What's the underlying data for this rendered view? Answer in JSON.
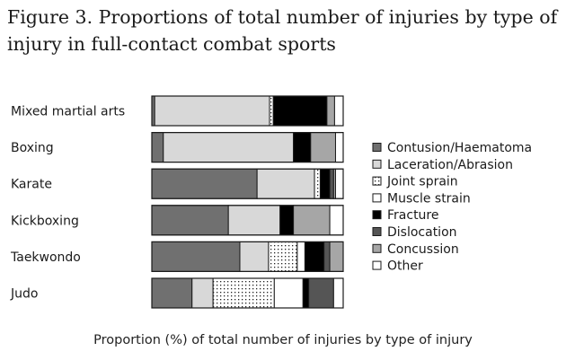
{
  "chart_data": {
    "type": "bar",
    "orientation": "horizontal",
    "stacked": true,
    "normalized": true,
    "title": "Figure 3. Proportions of total number of injuries by type of injury in full-contact combat sports",
    "xlabel": "Proportion (%) of total number of injuries by type of injury",
    "ylabel": "",
    "xlim": [
      0,
      100
    ],
    "legend_position": "right",
    "grid": false,
    "categories": [
      "Mixed martial arts",
      "Boxing",
      "Karate",
      "Kickboxing",
      "Taekwondo",
      "Judo"
    ],
    "series": [
      {
        "name": "Contusion/Haematoma",
        "color": "#707070",
        "pattern": "solid",
        "values": [
          1.5,
          6,
          55,
          40,
          46,
          21
        ]
      },
      {
        "name": "Laceration/Abrasion",
        "color": "#d8d8d8",
        "pattern": "solid",
        "values": [
          60,
          68,
          30,
          27,
          15,
          11
        ]
      },
      {
        "name": "Joint sprain",
        "color": "#ffffff",
        "pattern": "dots",
        "values": [
          2,
          0,
          3,
          0,
          15,
          32
        ]
      },
      {
        "name": "Muscle strain",
        "color": "#ffffff",
        "pattern": "solid",
        "values": [
          0,
          0,
          0,
          0,
          4,
          15
        ]
      },
      {
        "name": "Fracture",
        "color": "#000000",
        "pattern": "solid",
        "values": [
          28,
          9,
          5,
          7,
          10,
          3
        ]
      },
      {
        "name": "Dislocation",
        "color": "#555555",
        "pattern": "solid",
        "values": [
          0,
          0,
          2,
          0,
          3,
          13
        ]
      },
      {
        "name": "Concussion",
        "color": "#a6a6a6",
        "pattern": "solid",
        "values": [
          4,
          13,
          1,
          19,
          7,
          0
        ]
      },
      {
        "name": "Other",
        "color": "#ffffff",
        "pattern": "solid",
        "values": [
          4.5,
          4,
          4,
          7,
          0,
          5
        ]
      }
    ]
  }
}
